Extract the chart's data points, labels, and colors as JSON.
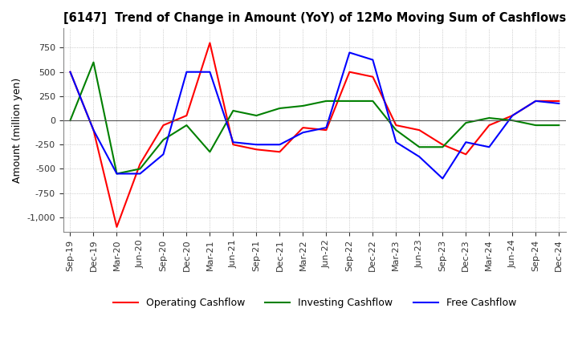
{
  "title": "[6147]  Trend of Change in Amount (YoY) of 12Mo Moving Sum of Cashflows",
  "ylabel": "Amount (million yen)",
  "x_labels": [
    "Sep-19",
    "Dec-19",
    "Mar-20",
    "Jun-20",
    "Sep-20",
    "Dec-20",
    "Mar-21",
    "Jun-21",
    "Sep-21",
    "Dec-21",
    "Mar-22",
    "Jun-22",
    "Sep-22",
    "Dec-22",
    "Mar-23",
    "Jun-23",
    "Sep-23",
    "Dec-23",
    "Mar-24",
    "Jun-24",
    "Sep-24",
    "Dec-24"
  ],
  "operating": [
    500,
    -100,
    -1100,
    -450,
    -50,
    50,
    800,
    -250,
    -300,
    -325,
    -75,
    -100,
    500,
    450,
    -50,
    -100,
    -250,
    -350,
    -50,
    50,
    200,
    200
  ],
  "investing": [
    0,
    600,
    -550,
    -500,
    -200,
    -50,
    -325,
    100,
    50,
    125,
    150,
    200,
    200,
    200,
    -100,
    -275,
    -275,
    -25,
    25,
    0,
    -50,
    -50
  ],
  "free": [
    500,
    -100,
    -550,
    -550,
    -350,
    500,
    500,
    -225,
    -250,
    -250,
    -125,
    -75,
    700,
    625,
    -225,
    -375,
    -600,
    -225,
    -275,
    50,
    200,
    175
  ],
  "ylim": [
    -1150,
    950
  ],
  "yticks": [
    -1000,
    -750,
    -500,
    -250,
    0,
    250,
    500,
    750
  ],
  "operating_color": "#ff0000",
  "investing_color": "#008000",
  "free_color": "#0000ff",
  "background_color": "#ffffff",
  "grid_color": "#aaaaaa"
}
